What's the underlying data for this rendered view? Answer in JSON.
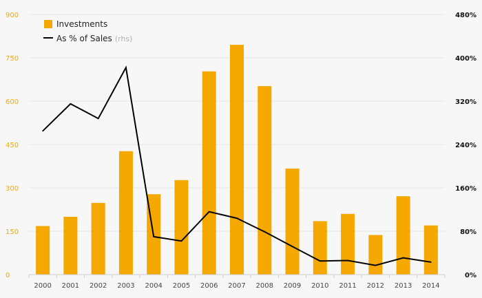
{
  "chart_data": {
    "type": "bar",
    "categories": [
      "2000",
      "2001",
      "2002",
      "2003",
      "2004",
      "2005",
      "2006",
      "2007",
      "2008",
      "2009",
      "2010",
      "2011",
      "2012",
      "2013",
      "2014"
    ],
    "series": [
      {
        "name": "Investments",
        "type": "bar",
        "axis": "left",
        "color": "#f5a800",
        "values": [
          168,
          200,
          248,
          427,
          278,
          327,
          703,
          795,
          652,
          367,
          185,
          210,
          137,
          271,
          170
        ]
      },
      {
        "name": "As % of Sales",
        "name_note": "(rhs)",
        "type": "line",
        "axis": "right",
        "color": "#000000",
        "values": [
          265,
          315,
          288,
          382,
          70,
          62,
          116,
          104,
          79,
          52,
          25,
          26,
          17,
          31,
          23
        ]
      }
    ],
    "y_left": {
      "ticks": [
        "0",
        "150",
        "300",
        "450",
        "600",
        "750",
        "900"
      ],
      "tick_values": [
        0,
        150,
        300,
        450,
        600,
        750,
        900
      ],
      "ylim": [
        0,
        900
      ],
      "color": "#f5a800"
    },
    "y_right": {
      "ticks": [
        "0%",
        "80%",
        "160%",
        "240%",
        "320%",
        "400%",
        "480%"
      ],
      "tick_values": [
        0,
        80,
        160,
        240,
        320,
        400,
        480
      ],
      "ylim": [
        0,
        480
      ]
    },
    "grid": true,
    "legend_position": "top-left"
  }
}
